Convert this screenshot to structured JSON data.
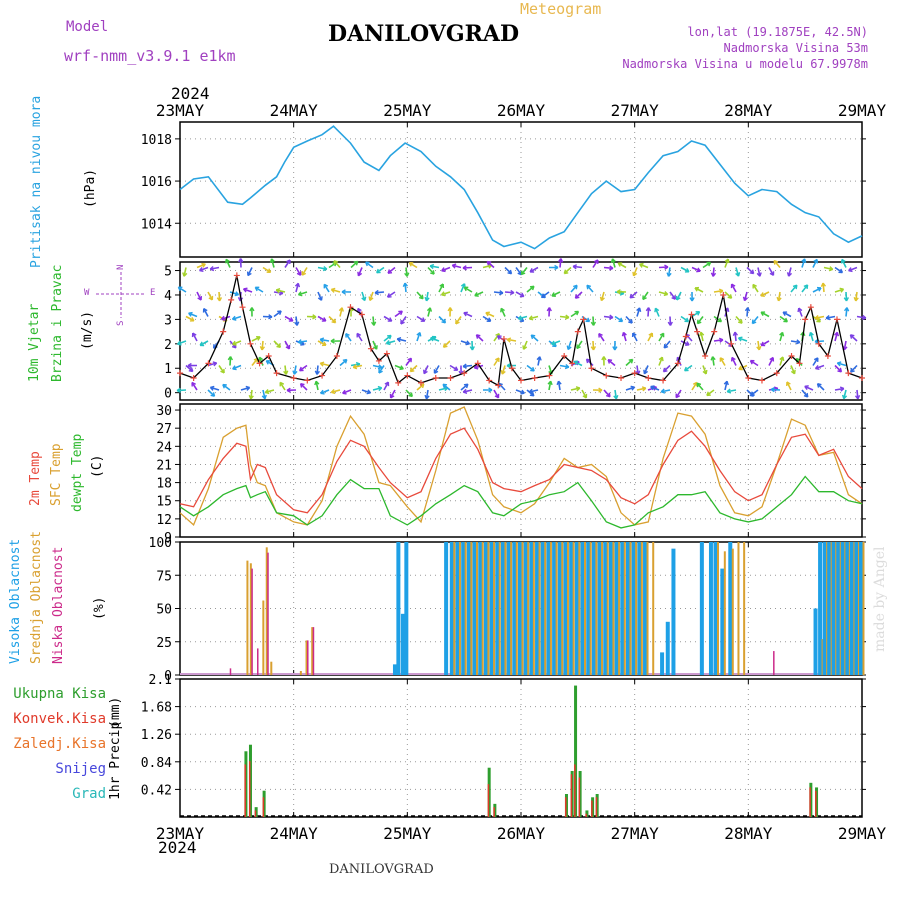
{
  "header": {
    "model_label": "Model",
    "model_name": "wrf-nmm_v3.9.1 e1km",
    "station": "DANILOVGRAD",
    "meteogram_label": "Meteogram",
    "lonlat": "lon,lat (19.1875E, 42.5N)",
    "altitude": "Nadmorska Visina 53m",
    "model_altitude": "Nadmorska Visina u modelu 67.9978m",
    "footer_station": "DANILOVGRAD",
    "watermark": "made by Angel",
    "year_top": "2024",
    "year_bottom": "2024"
  },
  "colors": {
    "pressure": "#29a3e0",
    "temp2m": "#e84a3c",
    "sfc": "#d9a030",
    "dew": "#2db82d",
    "high_cloud": "#1ea0e6",
    "mid_cloud": "#d9a030",
    "low_cloud": "#cc2a8a",
    "total_precip": "#2e9e2e",
    "conv_precip": "#e03a2a",
    "frz_precip": "#e8742a",
    "snow": "#4848dc",
    "hail": "#2ab8b8",
    "model": "#a040c0"
  },
  "x_axis": {
    "dates": [
      "23MAY",
      "24MAY",
      "25MAY",
      "26MAY",
      "27MAY",
      "28MAY",
      "29MAY"
    ]
  },
  "chart_data": [
    {
      "type": "line",
      "panel": "pressure",
      "ylabel_main": "Pritisak na nivou mora",
      "ylabel_unit": "(hPa)",
      "ylim": [
        1012.4,
        1018.8
      ],
      "yticks": [
        1014,
        1016,
        1018
      ],
      "x_unit": "days from 23MAY 00UTC",
      "x": [
        0,
        0.12,
        0.25,
        0.42,
        0.55,
        0.62,
        0.75,
        0.85,
        0.92,
        1.0,
        1.12,
        1.25,
        1.35,
        1.5,
        1.62,
        1.75,
        1.85,
        1.98,
        2.12,
        2.25,
        2.38,
        2.5,
        2.62,
        2.75,
        2.85,
        3.0,
        3.12,
        3.25,
        3.38,
        3.5,
        3.62,
        3.75,
        3.88,
        4.0,
        4.12,
        4.25,
        4.38,
        4.5,
        4.62,
        4.75,
        4.88,
        5.0,
        5.12,
        5.25,
        5.38,
        5.5,
        5.62,
        5.75,
        5.88,
        6.0
      ],
      "series": [
        {
          "name": "Pritisak na nivou mora",
          "values": [
            1015.6,
            1016.1,
            1016.2,
            1015.0,
            1014.9,
            1015.2,
            1015.8,
            1016.2,
            1016.9,
            1017.6,
            1017.9,
            1018.2,
            1018.6,
            1017.8,
            1016.9,
            1016.5,
            1017.2,
            1017.8,
            1017.4,
            1016.7,
            1016.2,
            1015.6,
            1014.5,
            1013.2,
            1012.9,
            1013.1,
            1012.8,
            1013.3,
            1013.6,
            1014.5,
            1015.4,
            1016.0,
            1015.5,
            1015.6,
            1016.4,
            1017.2,
            1017.4,
            1017.9,
            1017.7,
            1016.8,
            1015.9,
            1015.3,
            1015.6,
            1015.5,
            1014.9,
            1014.5,
            1014.3,
            1013.5,
            1013.1,
            1013.4
          ]
        }
      ]
    },
    {
      "type": "line",
      "panel": "wind",
      "ylabel_main": "10m Vjetar",
      "ylabel_sub": "Brzina i Pravac",
      "ylabel_unit": "(m/s)",
      "compass": {
        "north": "N",
        "south": "S",
        "west": "W",
        "east": "E"
      },
      "ylim": [
        -0.3,
        5.35
      ],
      "yticks": [
        0,
        1,
        2,
        3,
        4,
        5
      ],
      "x_unit": "days from 23MAY 00UTC",
      "x": [
        0,
        0.12,
        0.25,
        0.38,
        0.45,
        0.5,
        0.55,
        0.62,
        0.7,
        0.78,
        0.85,
        1.0,
        1.12,
        1.25,
        1.38,
        1.5,
        1.6,
        1.68,
        1.75,
        1.82,
        1.92,
        2.0,
        2.12,
        2.25,
        2.38,
        2.5,
        2.62,
        2.72,
        2.8,
        2.85,
        2.92,
        3.0,
        3.12,
        3.25,
        3.38,
        3.45,
        3.5,
        3.55,
        3.62,
        3.75,
        3.88,
        4.0,
        4.12,
        4.25,
        4.38,
        4.45,
        4.5,
        4.55,
        4.62,
        4.7,
        4.78,
        4.85,
        5.0,
        5.12,
        5.25,
        5.38,
        5.45,
        5.5,
        5.55,
        5.62,
        5.7,
        5.78,
        5.88,
        6.0
      ],
      "series": [
        {
          "name": "Brzina",
          "values": [
            0.8,
            0.6,
            1.2,
            2.5,
            3.8,
            4.8,
            3.5,
            2.0,
            1.2,
            1.5,
            0.8,
            0.6,
            0.5,
            0.7,
            1.5,
            3.5,
            3.2,
            1.8,
            1.3,
            1.6,
            0.4,
            0.7,
            0.4,
            0.6,
            0.6,
            0.8,
            1.2,
            0.5,
            0.3,
            2.2,
            1.0,
            0.5,
            0.6,
            0.7,
            1.5,
            1.2,
            2.5,
            3.0,
            1.0,
            0.7,
            0.6,
            0.8,
            0.6,
            0.5,
            1.2,
            2.3,
            3.2,
            2.5,
            1.5,
            2.5,
            4.0,
            2.0,
            0.6,
            0.5,
            0.8,
            1.5,
            1.2,
            3.0,
            3.5,
            2.0,
            1.5,
            3.0,
            0.8,
            0.6
          ]
        }
      ]
    },
    {
      "type": "line",
      "panel": "temperature",
      "ylabel_main": "2m Temp",
      "ylabel_sub": "SFC Temp",
      "ylabel_sub2": "dewpt Temp",
      "ylabel_unit": "(C)",
      "ylim": [
        9,
        31
      ],
      "yticks": [
        9,
        12,
        15,
        18,
        21,
        24,
        27,
        30
      ],
      "x_unit": "days from 23MAY 00UTC",
      "x": [
        0,
        0.12,
        0.25,
        0.38,
        0.5,
        0.58,
        0.62,
        0.68,
        0.75,
        0.85,
        1.0,
        1.12,
        1.25,
        1.38,
        1.5,
        1.62,
        1.75,
        1.85,
        2.0,
        2.12,
        2.25,
        2.38,
        2.5,
        2.62,
        2.75,
        2.85,
        3.0,
        3.12,
        3.25,
        3.38,
        3.5,
        3.62,
        3.75,
        3.88,
        4.0,
        4.12,
        4.25,
        4.38,
        4.5,
        4.62,
        4.75,
        4.88,
        5.0,
        5.12,
        5.25,
        5.38,
        5.5,
        5.62,
        5.75,
        5.88,
        6.0
      ],
      "series": [
        {
          "name": "2m Temp",
          "values": [
            14.5,
            14.0,
            18.5,
            22.0,
            24.5,
            24.0,
            18.5,
            21.0,
            20.5,
            16.0,
            13.5,
            13.0,
            16.0,
            21.5,
            25.0,
            24.0,
            20.5,
            18.0,
            15.5,
            16.5,
            22.0,
            26.0,
            27.0,
            23.5,
            18.0,
            17.0,
            16.5,
            17.5,
            18.5,
            21.0,
            20.5,
            20.0,
            18.5,
            15.5,
            14.5,
            16.0,
            21.0,
            25.0,
            26.5,
            24.0,
            20.0,
            16.5,
            15.0,
            16.0,
            21.0,
            25.5,
            26.0,
            22.5,
            23.5,
            19.0,
            17.0
          ]
        },
        {
          "name": "SFC Temp",
          "values": [
            13.0,
            11.0,
            17.0,
            25.5,
            27.0,
            27.5,
            21.0,
            18.0,
            17.5,
            13.0,
            11.5,
            11.0,
            15.0,
            24.0,
            29.0,
            26.0,
            18.0,
            17.5,
            14.0,
            11.5,
            20.0,
            29.5,
            30.5,
            25.0,
            16.0,
            14.0,
            13.0,
            14.5,
            18.0,
            22.0,
            20.5,
            21.0,
            19.0,
            13.0,
            11.0,
            11.5,
            22.0,
            29.5,
            29.0,
            26.0,
            17.5,
            13.0,
            12.5,
            14.0,
            21.0,
            28.5,
            27.5,
            22.5,
            23.0,
            16.0,
            14.5
          ]
        },
        {
          "name": "dewpt Temp",
          "values": [
            14.0,
            12.5,
            14.0,
            16.0,
            17.0,
            17.5,
            15.5,
            16.0,
            16.5,
            13.0,
            12.5,
            11.0,
            12.5,
            16.0,
            18.5,
            17.0,
            17.0,
            12.5,
            11.0,
            12.5,
            14.5,
            16.0,
            17.5,
            16.5,
            13.0,
            12.5,
            14.5,
            15.0,
            16.0,
            16.5,
            18.0,
            15.0,
            11.5,
            10.5,
            11.0,
            13.0,
            14.0,
            16.0,
            16.0,
            16.5,
            13.0,
            12.0,
            11.5,
            12.0,
            14.0,
            16.0,
            19.0,
            16.5,
            16.5,
            15.0,
            14.5
          ]
        }
      ]
    },
    {
      "type": "bar",
      "panel": "cloud",
      "ylabel_main": "Visoka Oblacnost",
      "ylabel_sub": "Srednja Oblacnost",
      "ylabel_sub2": "Niska Oblacnost",
      "ylabel_unit": "(%)",
      "ylim": [
        0,
        100
      ],
      "yticks": [
        0,
        25,
        50,
        75,
        100
      ],
      "x_unit": "days from 23MAY 00UTC",
      "note": "bar groups: [x, high, mid, low]",
      "bars": [
        [
          0.42,
          0,
          0,
          5
        ],
        [
          0.58,
          0,
          86,
          0
        ],
        [
          0.61,
          0,
          84,
          80
        ],
        [
          0.66,
          0,
          0,
          20
        ],
        [
          0.72,
          0,
          56,
          0
        ],
        [
          0.75,
          0,
          96,
          92
        ],
        [
          0.79,
          0,
          10,
          0
        ],
        [
          1.05,
          0,
          3,
          0
        ],
        [
          1.1,
          0,
          26,
          26
        ],
        [
          1.15,
          0,
          36,
          36
        ],
        [
          1.9,
          8,
          8,
          0
        ],
        [
          1.93,
          100,
          0,
          0
        ],
        [
          1.97,
          46,
          0,
          0
        ],
        [
          2.0,
          100,
          0,
          0
        ],
        [
          2.35,
          100,
          0,
          0
        ],
        [
          2.4,
          100,
          100,
          0
        ],
        [
          2.45,
          100,
          100,
          0
        ],
        [
          2.5,
          100,
          100,
          0
        ],
        [
          2.55,
          100,
          100,
          0
        ],
        [
          2.6,
          100,
          100,
          0
        ],
        [
          2.65,
          100,
          100,
          0
        ],
        [
          2.7,
          100,
          100,
          0
        ],
        [
          2.75,
          100,
          100,
          0
        ],
        [
          2.8,
          100,
          100,
          0
        ],
        [
          2.85,
          100,
          100,
          0
        ],
        [
          2.9,
          100,
          100,
          0
        ],
        [
          2.95,
          100,
          100,
          0
        ],
        [
          3.0,
          100,
          100,
          0
        ],
        [
          3.05,
          100,
          100,
          0
        ],
        [
          3.1,
          100,
          100,
          0
        ],
        [
          3.15,
          100,
          100,
          0
        ],
        [
          3.2,
          100,
          100,
          0
        ],
        [
          3.25,
          100,
          100,
          0
        ],
        [
          3.3,
          100,
          100,
          0
        ],
        [
          3.35,
          100,
          100,
          0
        ],
        [
          3.4,
          100,
          100,
          0
        ],
        [
          3.45,
          100,
          100,
          0
        ],
        [
          3.5,
          100,
          100,
          0
        ],
        [
          3.55,
          100,
          100,
          0
        ],
        [
          3.6,
          100,
          100,
          0
        ],
        [
          3.65,
          100,
          100,
          0
        ],
        [
          3.7,
          100,
          100,
          0
        ],
        [
          3.75,
          100,
          100,
          0
        ],
        [
          3.8,
          100,
          100,
          0
        ],
        [
          3.85,
          100,
          100,
          0
        ],
        [
          3.9,
          100,
          100,
          0
        ],
        [
          3.95,
          100,
          100,
          0
        ],
        [
          4.0,
          100,
          100,
          0
        ],
        [
          4.05,
          100,
          100,
          0
        ],
        [
          4.1,
          100,
          100,
          0
        ],
        [
          4.15,
          0,
          100,
          0
        ],
        [
          4.25,
          17,
          0,
          0
        ],
        [
          4.3,
          40,
          0,
          0
        ],
        [
          4.35,
          95,
          0,
          0
        ],
        [
          4.6,
          100,
          0,
          0
        ],
        [
          4.68,
          100,
          0,
          0
        ],
        [
          4.72,
          100,
          100,
          0
        ],
        [
          4.78,
          80,
          93,
          0
        ],
        [
          4.85,
          100,
          95,
          0
        ],
        [
          4.9,
          0,
          100,
          0
        ],
        [
          4.95,
          0,
          100,
          0
        ],
        [
          5.2,
          0,
          0,
          18
        ],
        [
          5.6,
          50,
          0,
          0
        ],
        [
          5.64,
          100,
          27,
          0
        ],
        [
          5.68,
          100,
          100,
          0
        ],
        [
          5.72,
          100,
          100,
          0
        ],
        [
          5.76,
          100,
          100,
          0
        ],
        [
          5.8,
          100,
          100,
          0
        ],
        [
          5.84,
          100,
          100,
          0
        ],
        [
          5.88,
          100,
          100,
          0
        ],
        [
          5.92,
          100,
          100,
          0
        ],
        [
          5.96,
          100,
          100,
          0
        ],
        [
          6.0,
          100,
          100,
          0
        ]
      ]
    },
    {
      "type": "bar",
      "panel": "precip",
      "legend": [
        "Ukupna Kisa",
        "Konvek.Kisa",
        "Zaledj.Kisa",
        "Snijeg",
        "Grad"
      ],
      "ylabel_main": "1hr Precip",
      "ylabel_unit": "(mm)",
      "ylim": [
        0,
        2.1
      ],
      "yticks": [
        0.42,
        0.84,
        1.26,
        1.68,
        2.1
      ],
      "ytick_labels": [
        "0.42",
        "0.84",
        "1.26",
        "1.68",
        "2.1"
      ],
      "x_unit": "days from 23MAY 00UTC",
      "note": "bar groups: [x, total, convective]",
      "bars": [
        [
          0.58,
          1.0,
          0.8
        ],
        [
          0.62,
          1.1,
          0.85
        ],
        [
          0.67,
          0.15,
          0.1
        ],
        [
          0.74,
          0.4,
          0.3
        ],
        [
          2.72,
          0.75,
          0.5
        ],
        [
          2.77,
          0.2,
          0.15
        ],
        [
          3.4,
          0.35,
          0.3
        ],
        [
          3.45,
          0.7,
          0.65
        ],
        [
          3.48,
          2.0,
          0.8
        ],
        [
          3.52,
          0.7,
          0.6
        ],
        [
          3.58,
          0.1,
          0.05
        ],
        [
          3.63,
          0.3,
          0.25
        ],
        [
          3.67,
          0.35,
          0.3
        ],
        [
          5.55,
          0.52,
          0.45
        ],
        [
          5.6,
          0.45,
          0.4
        ]
      ]
    }
  ]
}
